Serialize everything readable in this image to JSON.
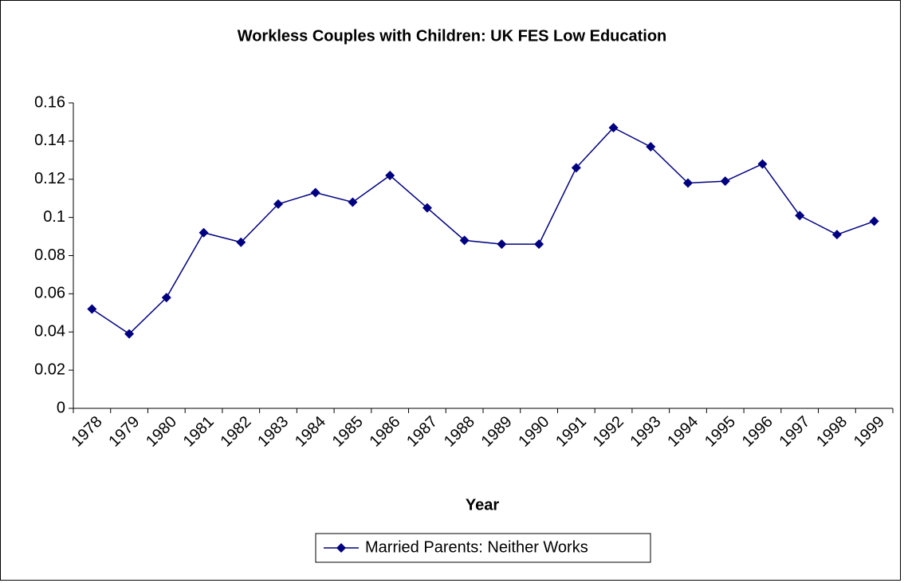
{
  "chart_data": {
    "type": "line",
    "title": "Workless Couples with Children: UK FES Low Education",
    "x_label": "Year",
    "categories": [
      "1978",
      "1979",
      "1980",
      "1981",
      "1982",
      "1983",
      "1984",
      "1985",
      "1986",
      "1987",
      "1988",
      "1989",
      "1990",
      "1991",
      "1992",
      "1993",
      "1994",
      "1995",
      "1996",
      "1997",
      "1998",
      "1999"
    ],
    "series": [
      {
        "name": "Married Parents: Neither Works",
        "color": "#000080",
        "values": [
          0.052,
          0.039,
          0.058,
          0.092,
          0.087,
          0.107,
          0.113,
          0.108,
          0.122,
          0.105,
          0.088,
          0.086,
          0.086,
          0.126,
          0.147,
          0.137,
          0.118,
          0.119,
          0.128,
          0.101,
          0.091,
          0.098
        ]
      }
    ],
    "ylim": [
      0,
      0.16
    ],
    "yticks": [
      0,
      0.02,
      0.04,
      0.06,
      0.08,
      0.1,
      0.12,
      0.14,
      0.16
    ],
    "grid": false,
    "legend": "bottom"
  }
}
